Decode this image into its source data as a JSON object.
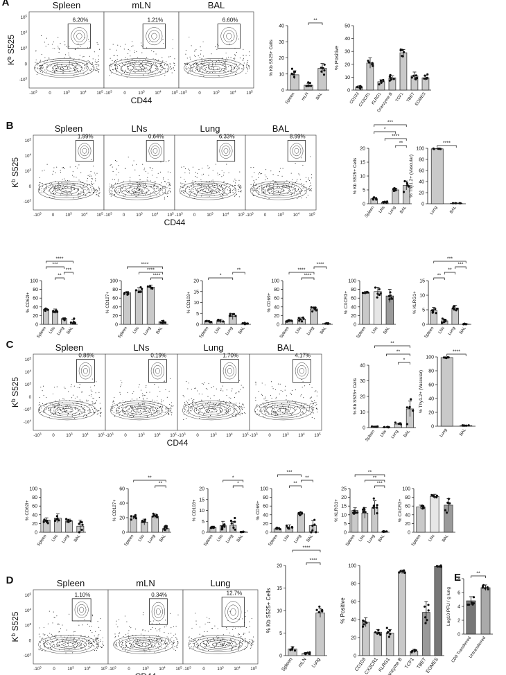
{
  "figure": {
    "panels": [
      {
        "letter": "A",
        "flow": {
          "ylabel": "Kb S525",
          "xlabel": "CD44",
          "plots": [
            {
              "title": "Spleen",
              "pct": "6.20%"
            },
            {
              "title": "mLN",
              "pct": "1.21%"
            },
            {
              "title": "BAL",
              "pct": "6.60%"
            }
          ],
          "yticks": [
            "10^5",
            "10^4",
            "10^3",
            "0",
            "-10^3"
          ],
          "xticks": [
            "-10^3",
            "0",
            "10^3",
            "10^4",
            "10^5"
          ]
        }
      },
      {
        "letter": "B",
        "flow": {
          "ylabel": "Kb S525",
          "xlabel": "CD44",
          "plots": [
            {
              "title": "Spleen",
              "pct": "1.99%"
            },
            {
              "title": "LNs",
              "pct": "0.64%"
            },
            {
              "title": "Lung",
              "pct": "6.33%"
            },
            {
              "title": "BAL",
              "pct": "8.99%"
            }
          ],
          "yticks": [
            "10^5",
            "10^4",
            "10^3",
            "0",
            "-10^3"
          ],
          "xticks": [
            "-10^3",
            "0",
            "10^3",
            "10^4",
            "10^5"
          ]
        }
      },
      {
        "letter": "C",
        "flow": {
          "ylabel": "Kb S525",
          "xlabel": "CD44",
          "plots": [
            {
              "title": "Spleen",
              "pct": "0.86%"
            },
            {
              "title": "LNs",
              "pct": "0.19%"
            },
            {
              "title": "Lung",
              "pct": "1.70%"
            },
            {
              "title": "BAL",
              "pct": "4.17%"
            }
          ],
          "yticks": [
            "10^5",
            "10^4",
            "10^3",
            "0",
            "-10^3",
            "-10^4"
          ],
          "xticks": [
            "-10^3",
            "0",
            "10^3",
            "10^4",
            "10^5"
          ]
        }
      },
      {
        "letter": "D",
        "flow": {
          "ylabel": "Kb S525",
          "xlabel": "CD44",
          "plots": [
            {
              "title": "Spleen",
              "pct": "1.10%"
            },
            {
              "title": "mLN",
              "pct": "0.34%"
            },
            {
              "title": "Lung",
              "pct": "12.7%"
            }
          ],
          "yticks": [
            "10^5",
            "10^4",
            "10^3",
            "0",
            "-10^3"
          ],
          "xticks": [
            "-10^3",
            "0",
            "10^3",
            "10^4",
            "10^5"
          ]
        }
      },
      {
        "letter": "E"
      }
    ]
  },
  "chart_data": [
    {
      "id": "A-kb",
      "type": "bar",
      "ylabel": "% Kb S525+ Cells",
      "ylim": [
        0,
        40
      ],
      "yticks": [
        0,
        10,
        20,
        30,
        40
      ],
      "categories": [
        "Spleen",
        "mLN",
        "BAL"
      ],
      "values": [
        9.5,
        3.0,
        13.5
      ],
      "errors": [
        2.5,
        1.2,
        3.0
      ],
      "sig": [
        {
          "from": 1,
          "to": 2,
          "label": "**"
        }
      ]
    },
    {
      "id": "A-pos",
      "type": "bar",
      "ylabel": "% Positive",
      "ylim": [
        0,
        50
      ],
      "yticks": [
        0,
        10,
        20,
        30,
        40,
        50
      ],
      "categories": [
        "CD103",
        "CX3CR1",
        "KLRG1",
        "Granzyme B",
        "TCF1",
        "TBET",
        "EOMES"
      ],
      "values": [
        2.5,
        21,
        6.5,
        9.5,
        29,
        11,
        9.5
      ],
      "errors": [
        0.8,
        4,
        1.5,
        1.5,
        2.5,
        3,
        2
      ],
      "sig": []
    },
    {
      "id": "B-kb",
      "type": "bar",
      "ylabel": "% Kb S525+ Cells",
      "ylim": [
        0,
        20
      ],
      "yticks": [
        0,
        5,
        10,
        15,
        20
      ],
      "categories": [
        "Spleen",
        "LNs",
        "Lung",
        "BAL"
      ],
      "values": [
        1.8,
        0.5,
        5.0,
        6.6
      ],
      "errors": [
        0.3,
        0.2,
        0.6,
        1.6
      ],
      "sig": [
        {
          "from": 2,
          "to": 3,
          "label": "**"
        },
        {
          "from": 1,
          "to": 3,
          "label": "****"
        },
        {
          "from": 0,
          "to": 2,
          "label": "*"
        },
        {
          "from": 0,
          "to": 3,
          "label": "***"
        }
      ]
    },
    {
      "id": "B-thy",
      "type": "bar",
      "ylabel": "% Thy1.2+ (Vascular)",
      "ylim": [
        0,
        100
      ],
      "yticks": [
        0,
        20,
        40,
        60,
        80,
        100
      ],
      "categories": [
        "Lung",
        "BAL"
      ],
      "values": [
        99,
        1
      ],
      "errors": [
        0.4,
        0.3
      ],
      "sig": [
        {
          "from": 0,
          "to": 1,
          "label": "****"
        }
      ]
    },
    {
      "id": "B-cd62l",
      "type": "bar",
      "ylabel": "% CD62l+",
      "ylim": [
        0,
        100
      ],
      "yticks": [
        0,
        20,
        40,
        60,
        80,
        100
      ],
      "categories": [
        "Spleen",
        "LNs",
        "Lung",
        "BAL"
      ],
      "values": [
        34,
        30,
        13,
        5
      ],
      "errors": [
        2,
        5,
        2,
        6
      ],
      "sig": [
        {
          "from": 1,
          "to": 2,
          "label": "**"
        },
        {
          "from": 2,
          "to": 3,
          "label": "***"
        },
        {
          "from": 0,
          "to": 2,
          "label": "***"
        },
        {
          "from": 0,
          "to": 3,
          "label": "****"
        }
      ]
    },
    {
      "id": "B-cd127",
      "type": "bar",
      "ylabel": "% CD127+",
      "ylim": [
        0,
        100
      ],
      "yticks": [
        0,
        20,
        40,
        60,
        80,
        100
      ],
      "categories": [
        "Spleen",
        "LNs",
        "Lung",
        "BAL"
      ],
      "values": [
        72,
        78,
        85,
        6
      ],
      "errors": [
        3,
        6,
        5,
        3
      ],
      "sig": [
        {
          "from": 2,
          "to": 3,
          "label": "****"
        },
        {
          "from": 1,
          "to": 3,
          "label": "****"
        },
        {
          "from": 0,
          "to": 3,
          "label": "****"
        }
      ]
    },
    {
      "id": "B-cd103",
      "type": "bar",
      "ylabel": "% CD103+",
      "ylim": [
        0,
        20
      ],
      "yticks": [
        0,
        5,
        10,
        15,
        20
      ],
      "categories": [
        "Spleen",
        "LNs",
        "Lung",
        "BAL"
      ],
      "values": [
        1.2,
        1.5,
        3.6,
        0.3
      ],
      "errors": [
        0.3,
        0.8,
        1.4,
        0.2
      ],
      "sig": [
        {
          "from": 0,
          "to": 2,
          "label": "*"
        },
        {
          "from": 2,
          "to": 3,
          "label": "**"
        }
      ]
    },
    {
      "id": "B-cd69",
      "type": "bar",
      "ylabel": "% CD69+",
      "ylim": [
        0,
        100
      ],
      "yticks": [
        0,
        20,
        40,
        60,
        80,
        100
      ],
      "categories": [
        "Spleen",
        "LNs",
        "Lung",
        "BAL"
      ],
      "values": [
        8,
        12,
        35,
        2
      ],
      "errors": [
        2,
        4,
        4,
        1
      ],
      "sig": [
        {
          "from": 1,
          "to": 2,
          "label": "****"
        },
        {
          "from": 0,
          "to": 2,
          "label": "****"
        },
        {
          "from": 2,
          "to": 3,
          "label": "****"
        }
      ]
    },
    {
      "id": "B-cxcr3",
      "type": "bar",
      "ylabel": "% CXCR3+",
      "ylim": [
        0,
        100
      ],
      "yticks": [
        0,
        20,
        40,
        60,
        80,
        100
      ],
      "categories": [
        "Spleen",
        "LNs",
        "BAL"
      ],
      "values": [
        72,
        75,
        65
      ],
      "errors": [
        3,
        10,
        15
      ],
      "sig": []
    },
    {
      "id": "B-klrg1",
      "type": "bar",
      "ylabel": "% KLRG1+",
      "ylim": [
        0,
        15
      ],
      "yticks": [
        0,
        5,
        10,
        15
      ],
      "categories": [
        "Spleen",
        "LNs",
        "Lung",
        "BAL"
      ],
      "values": [
        4.8,
        1.2,
        5.6,
        0.1
      ],
      "errors": [
        1.0,
        0.6,
        0.9,
        0.1
      ],
      "sig": [
        {
          "from": 0,
          "to": 1,
          "label": "**"
        },
        {
          "from": 1,
          "to": 2,
          "label": "**"
        },
        {
          "from": 2,
          "to": 3,
          "label": "***"
        },
        {
          "from": 0,
          "to": 3,
          "label": "***"
        }
      ]
    },
    {
      "id": "C-kb",
      "type": "bar",
      "ylabel": "% Kb S525+ Cells",
      "ylim": [
        0,
        40
      ],
      "yticks": [
        0,
        10,
        20,
        30,
        40
      ],
      "categories": [
        "Spleen",
        "LNs",
        "Lung",
        "BAL"
      ],
      "values": [
        0.6,
        0.3,
        2.2,
        12
      ],
      "errors": [
        0.2,
        0.1,
        0.5,
        5
      ],
      "sig": [
        {
          "from": 2,
          "to": 3,
          "label": "*"
        },
        {
          "from": 1,
          "to": 3,
          "label": "**"
        },
        {
          "from": 0,
          "to": 3,
          "label": "**"
        }
      ]
    },
    {
      "id": "C-thy",
      "type": "bar",
      "ylabel": "% Thy1.2+ (Vascular)",
      "ylim": [
        0,
        100
      ],
      "yticks": [
        0,
        20,
        40,
        60,
        80,
        100
      ],
      "categories": [
        "Lung",
        "BAL"
      ],
      "values": [
        99,
        1
      ],
      "errors": [
        0.4,
        0.3
      ],
      "sig": [
        {
          "from": 0,
          "to": 1,
          "label": "****"
        }
      ]
    },
    {
      "id": "C-cd62l",
      "type": "bar",
      "ylabel": "% CD62l+",
      "ylim": [
        0,
        100
      ],
      "yticks": [
        0,
        20,
        40,
        60,
        80,
        100
      ],
      "categories": [
        "Spleen",
        "LNs",
        "Lung",
        "BAL"
      ],
      "values": [
        28,
        32,
        26,
        14
      ],
      "errors": [
        5,
        10,
        4,
        14
      ],
      "sig": []
    },
    {
      "id": "C-cd127",
      "type": "bar",
      "ylabel": "% CD127+",
      "ylim": [
        0,
        60
      ],
      "yticks": [
        0,
        20,
        40,
        60
      ],
      "categories": [
        "Spleen",
        "LNs",
        "Lung",
        "BAL"
      ],
      "values": [
        20,
        14,
        22,
        5
      ],
      "errors": [
        2,
        4,
        3,
        4
      ],
      "sig": [
        {
          "from": 2,
          "to": 3,
          "label": "**"
        },
        {
          "from": 0,
          "to": 3,
          "label": "**"
        }
      ]
    },
    {
      "id": "C-cd103",
      "type": "bar",
      "ylabel": "% CD103+",
      "ylim": [
        0,
        20
      ],
      "yticks": [
        0,
        5,
        10,
        15,
        20
      ],
      "categories": [
        "Spleen",
        "LNs",
        "Lung",
        "BAL"
      ],
      "values": [
        2.2,
        3,
        3.2,
        0.2
      ],
      "errors": [
        0.6,
        2,
        1.8,
        0.1
      ],
      "sig": [
        {
          "from": 2,
          "to": 3,
          "label": "*"
        },
        {
          "from": 1,
          "to": 3,
          "label": "*"
        }
      ]
    },
    {
      "id": "C-cd69",
      "type": "bar",
      "ylabel": "% CD69+",
      "ylim": [
        0,
        100
      ],
      "yticks": [
        0,
        20,
        40,
        60,
        80,
        100
      ],
      "categories": [
        "Spleen",
        "LNs",
        "Lung",
        "BAL"
      ],
      "values": [
        8,
        12,
        42,
        15
      ],
      "errors": [
        2,
        5,
        4,
        12
      ],
      "sig": [
        {
          "from": 1,
          "to": 2,
          "label": "**"
        },
        {
          "from": 2,
          "to": 3,
          "label": "**"
        },
        {
          "from": 0,
          "to": 2,
          "label": "***"
        }
      ]
    },
    {
      "id": "C-klrg1",
      "type": "bar",
      "ylabel": "% KLRG1+",
      "ylim": [
        0,
        25
      ],
      "yticks": [
        0,
        5,
        10,
        15,
        20,
        25
      ],
      "categories": [
        "Spleen",
        "LNs",
        "Lung",
        "BAL"
      ],
      "values": [
        12.5,
        11,
        14,
        0.3
      ],
      "errors": [
        1.5,
        3,
        4,
        0.2
      ],
      "sig": [
        {
          "from": 2,
          "to": 3,
          "label": "***"
        },
        {
          "from": 1,
          "to": 3,
          "label": "**"
        },
        {
          "from": 0,
          "to": 3,
          "label": "**"
        }
      ]
    },
    {
      "id": "C-cxcr3",
      "type": "bar",
      "ylabel": "% CXCR3+",
      "ylim": [
        0,
        100
      ],
      "yticks": [
        0,
        20,
        40,
        60,
        80,
        100
      ],
      "categories": [
        "Spleen",
        "LNs",
        "BAL"
      ],
      "values": [
        58,
        82,
        62
      ],
      "errors": [
        4,
        5,
        15
      ],
      "sig": []
    },
    {
      "id": "D-kb",
      "type": "bar",
      "ylabel": "% Kb S525+ Cells",
      "ylim": [
        0,
        20
      ],
      "yticks": [
        0,
        5,
        10,
        15,
        20
      ],
      "categories": [
        "Spleen",
        "mLN",
        "Lung"
      ],
      "values": [
        1.5,
        0.5,
        9.5
      ],
      "errors": [
        0.5,
        0.2,
        1.0
      ],
      "sig": [
        {
          "from": 1,
          "to": 2,
          "label": "****"
        },
        {
          "from": 0,
          "to": 2,
          "label": "****"
        }
      ]
    },
    {
      "id": "D-pos",
      "type": "bar",
      "ylabel": "% Positive",
      "ylim": [
        0,
        100
      ],
      "yticks": [
        0,
        20,
        40,
        60,
        80,
        100
      ],
      "categories": [
        "CD103",
        "CX3CR1",
        "KLRG1",
        "Granzyme B",
        "TCF1",
        "TBET",
        "EOMES"
      ],
      "values": [
        37,
        26,
        25,
        93,
        5,
        48,
        99
      ],
      "errors": [
        5,
        3,
        4,
        2,
        2,
        12,
        0.5
      ],
      "sig": []
    },
    {
      "id": "E-pfu",
      "type": "bar",
      "ylabel": "Log10 PFU / g lung",
      "ylim": [
        0,
        8
      ],
      "yticks": [
        0,
        2,
        4,
        6,
        8
      ],
      "categories": [
        "CD8 Transferred",
        "Untransferred"
      ],
      "values": [
        4.8,
        6.7
      ],
      "errors": [
        0.6,
        0.4
      ],
      "sig": [
        {
          "from": 0,
          "to": 1,
          "label": "**"
        }
      ]
    }
  ]
}
